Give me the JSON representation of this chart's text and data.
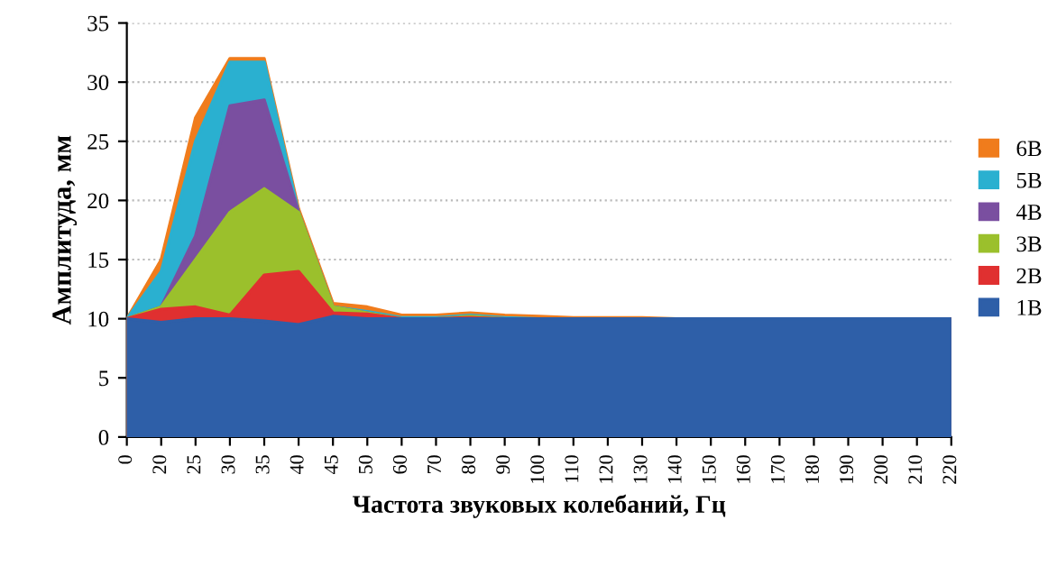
{
  "chart_data": {
    "type": "area",
    "xlabel": "Частота звуковых колебаний, Гц",
    "ylabel": "Амплитуда, мм",
    "categories": [
      "0",
      "20",
      "25",
      "30",
      "35",
      "40",
      "45",
      "50",
      "60",
      "70",
      "80",
      "90",
      "100",
      "110",
      "120",
      "130",
      "140",
      "150",
      "160",
      "170",
      "180",
      "190",
      "200",
      "210",
      "220"
    ],
    "ylim": [
      0,
      35
    ],
    "yticks": [
      0,
      5,
      10,
      15,
      20,
      25,
      30,
      35
    ],
    "grid": "y",
    "legend": "right",
    "series": [
      {
        "name": "1B",
        "color": "#2e5fa8",
        "values": [
          10,
          9.7,
          10,
          10,
          9.8,
          9.5,
          10.2,
          10,
          10,
          10,
          10,
          10,
          10,
          10,
          10,
          10,
          10,
          10,
          10,
          10,
          10,
          10,
          10,
          10,
          10
        ]
      },
      {
        "name": "2B",
        "color": "#e03030",
        "values": [
          10,
          10.8,
          11,
          10.3,
          13.7,
          14,
          10.5,
          10.4,
          10,
          10,
          10.1,
          10,
          10,
          10,
          10,
          10,
          10,
          10,
          10,
          10,
          10,
          10,
          10,
          10,
          10
        ]
      },
      {
        "name": "3B",
        "color": "#9bc02c",
        "values": [
          10,
          11,
          15,
          19,
          21,
          19,
          11,
          10.5,
          10,
          10,
          10.2,
          10,
          10,
          10,
          10,
          10,
          10,
          10,
          10,
          10,
          10,
          10,
          10,
          10,
          10
        ]
      },
      {
        "name": "4B",
        "color": "#7a4fa0",
        "values": [
          10,
          11,
          17,
          28,
          28.5,
          19,
          11,
          10.5,
          10,
          10,
          10.2,
          10,
          10,
          10,
          10,
          10,
          10,
          10,
          10,
          10,
          10,
          10,
          10,
          10,
          10
        ]
      },
      {
        "name": "5B",
        "color": "#2ab0d0",
        "values": [
          10,
          14,
          25,
          31.7,
          31.7,
          19,
          11,
          10.6,
          10.1,
          10.1,
          10.3,
          10.1,
          10,
          10,
          10,
          10,
          10,
          10,
          10,
          10,
          10,
          10,
          10,
          10,
          10
        ]
      },
      {
        "name": "6B",
        "color": "#f07c1c",
        "values": [
          10,
          15,
          27,
          32,
          32,
          19.3,
          11.3,
          11,
          10.3,
          10.3,
          10.5,
          10.3,
          10.2,
          10.1,
          10.1,
          10.1,
          10,
          10,
          10,
          10,
          10,
          10,
          10,
          10,
          10
        ]
      }
    ]
  }
}
